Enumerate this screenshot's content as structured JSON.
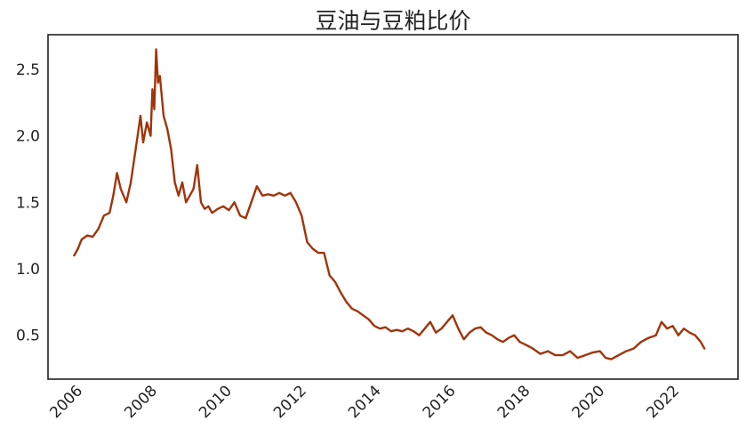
{
  "chart_data": {
    "type": "line",
    "title": "豆油与豆粕比价",
    "xlabel": "",
    "ylabel": "",
    "x_ticks": [
      "2006",
      "2008",
      "2010",
      "2012",
      "2014",
      "2016",
      "2018",
      "2020",
      "2022"
    ],
    "y_ticks": [
      "0.5",
      "1.0",
      "1.5",
      "2.0",
      "2.5"
    ],
    "xlim": [
      2005.2,
      2023.7
    ],
    "ylim": [
      0.17,
      2.76
    ],
    "grid": false,
    "legend": "none",
    "series": [
      {
        "color": "#a0340a",
        "x": [
          2005.9,
          2006.0,
          2006.1,
          2006.25,
          2006.4,
          2006.55,
          2006.7,
          2006.85,
          2006.95,
          2007.05,
          2007.15,
          2007.3,
          2007.42,
          2007.55,
          2007.68,
          2007.75,
          2007.85,
          2007.95,
          2008.0,
          2008.05,
          2008.1,
          2008.15,
          2008.2,
          2008.3,
          2008.4,
          2008.5,
          2008.6,
          2008.7,
          2008.8,
          2008.9,
          2009.0,
          2009.1,
          2009.2,
          2009.3,
          2009.4,
          2009.5,
          2009.6,
          2009.75,
          2009.9,
          2010.05,
          2010.2,
          2010.35,
          2010.5,
          2010.65,
          2010.8,
          2010.95,
          2011.1,
          2011.25,
          2011.4,
          2011.55,
          2011.7,
          2011.85,
          2012.0,
          2012.15,
          2012.3,
          2012.45,
          2012.6,
          2012.75,
          2012.9,
          2013.05,
          2013.2,
          2013.35,
          2013.5,
          2013.65,
          2013.8,
          2013.95,
          2014.1,
          2014.25,
          2014.4,
          2014.55,
          2014.7,
          2014.85,
          2015.0,
          2015.15,
          2015.3,
          2015.45,
          2015.6,
          2015.75,
          2015.9,
          2016.05,
          2016.2,
          2016.35,
          2016.5,
          2016.65,
          2016.8,
          2016.95,
          2017.1,
          2017.25,
          2017.4,
          2017.55,
          2017.7,
          2017.85,
          2018.0,
          2018.2,
          2018.4,
          2018.6,
          2018.8,
          2019.0,
          2019.2,
          2019.4,
          2019.6,
          2019.8,
          2020.0,
          2020.15,
          2020.3,
          2020.5,
          2020.7,
          2020.9,
          2021.1,
          2021.3,
          2021.5,
          2021.65,
          2021.8,
          2021.95,
          2022.1,
          2022.25,
          2022.4,
          2022.55,
          2022.7,
          2022.8
        ],
        "values": [
          1.1,
          1.15,
          1.22,
          1.25,
          1.24,
          1.3,
          1.4,
          1.42,
          1.55,
          1.72,
          1.6,
          1.5,
          1.65,
          1.9,
          2.15,
          1.95,
          2.1,
          2.0,
          2.35,
          2.2,
          2.65,
          2.4,
          2.45,
          2.15,
          2.05,
          1.9,
          1.65,
          1.55,
          1.65,
          1.5,
          1.55,
          1.6,
          1.78,
          1.5,
          1.45,
          1.47,
          1.42,
          1.45,
          1.47,
          1.44,
          1.5,
          1.4,
          1.38,
          1.5,
          1.62,
          1.55,
          1.56,
          1.55,
          1.57,
          1.55,
          1.57,
          1.5,
          1.4,
          1.2,
          1.15,
          1.12,
          1.12,
          0.95,
          0.9,
          0.82,
          0.75,
          0.7,
          0.68,
          0.65,
          0.62,
          0.57,
          0.55,
          0.56,
          0.53,
          0.54,
          0.53,
          0.55,
          0.53,
          0.5,
          0.55,
          0.6,
          0.52,
          0.55,
          0.6,
          0.65,
          0.55,
          0.47,
          0.52,
          0.55,
          0.56,
          0.52,
          0.5,
          0.47,
          0.45,
          0.48,
          0.5,
          0.45,
          0.43,
          0.4,
          0.36,
          0.38,
          0.35,
          0.35,
          0.38,
          0.33,
          0.35,
          0.37,
          0.38,
          0.33,
          0.32,
          0.35,
          0.38,
          0.4,
          0.45,
          0.48,
          0.5,
          0.6,
          0.55,
          0.57,
          0.5,
          0.55,
          0.52,
          0.5,
          0.45,
          0.4
        ]
      }
    ]
  }
}
